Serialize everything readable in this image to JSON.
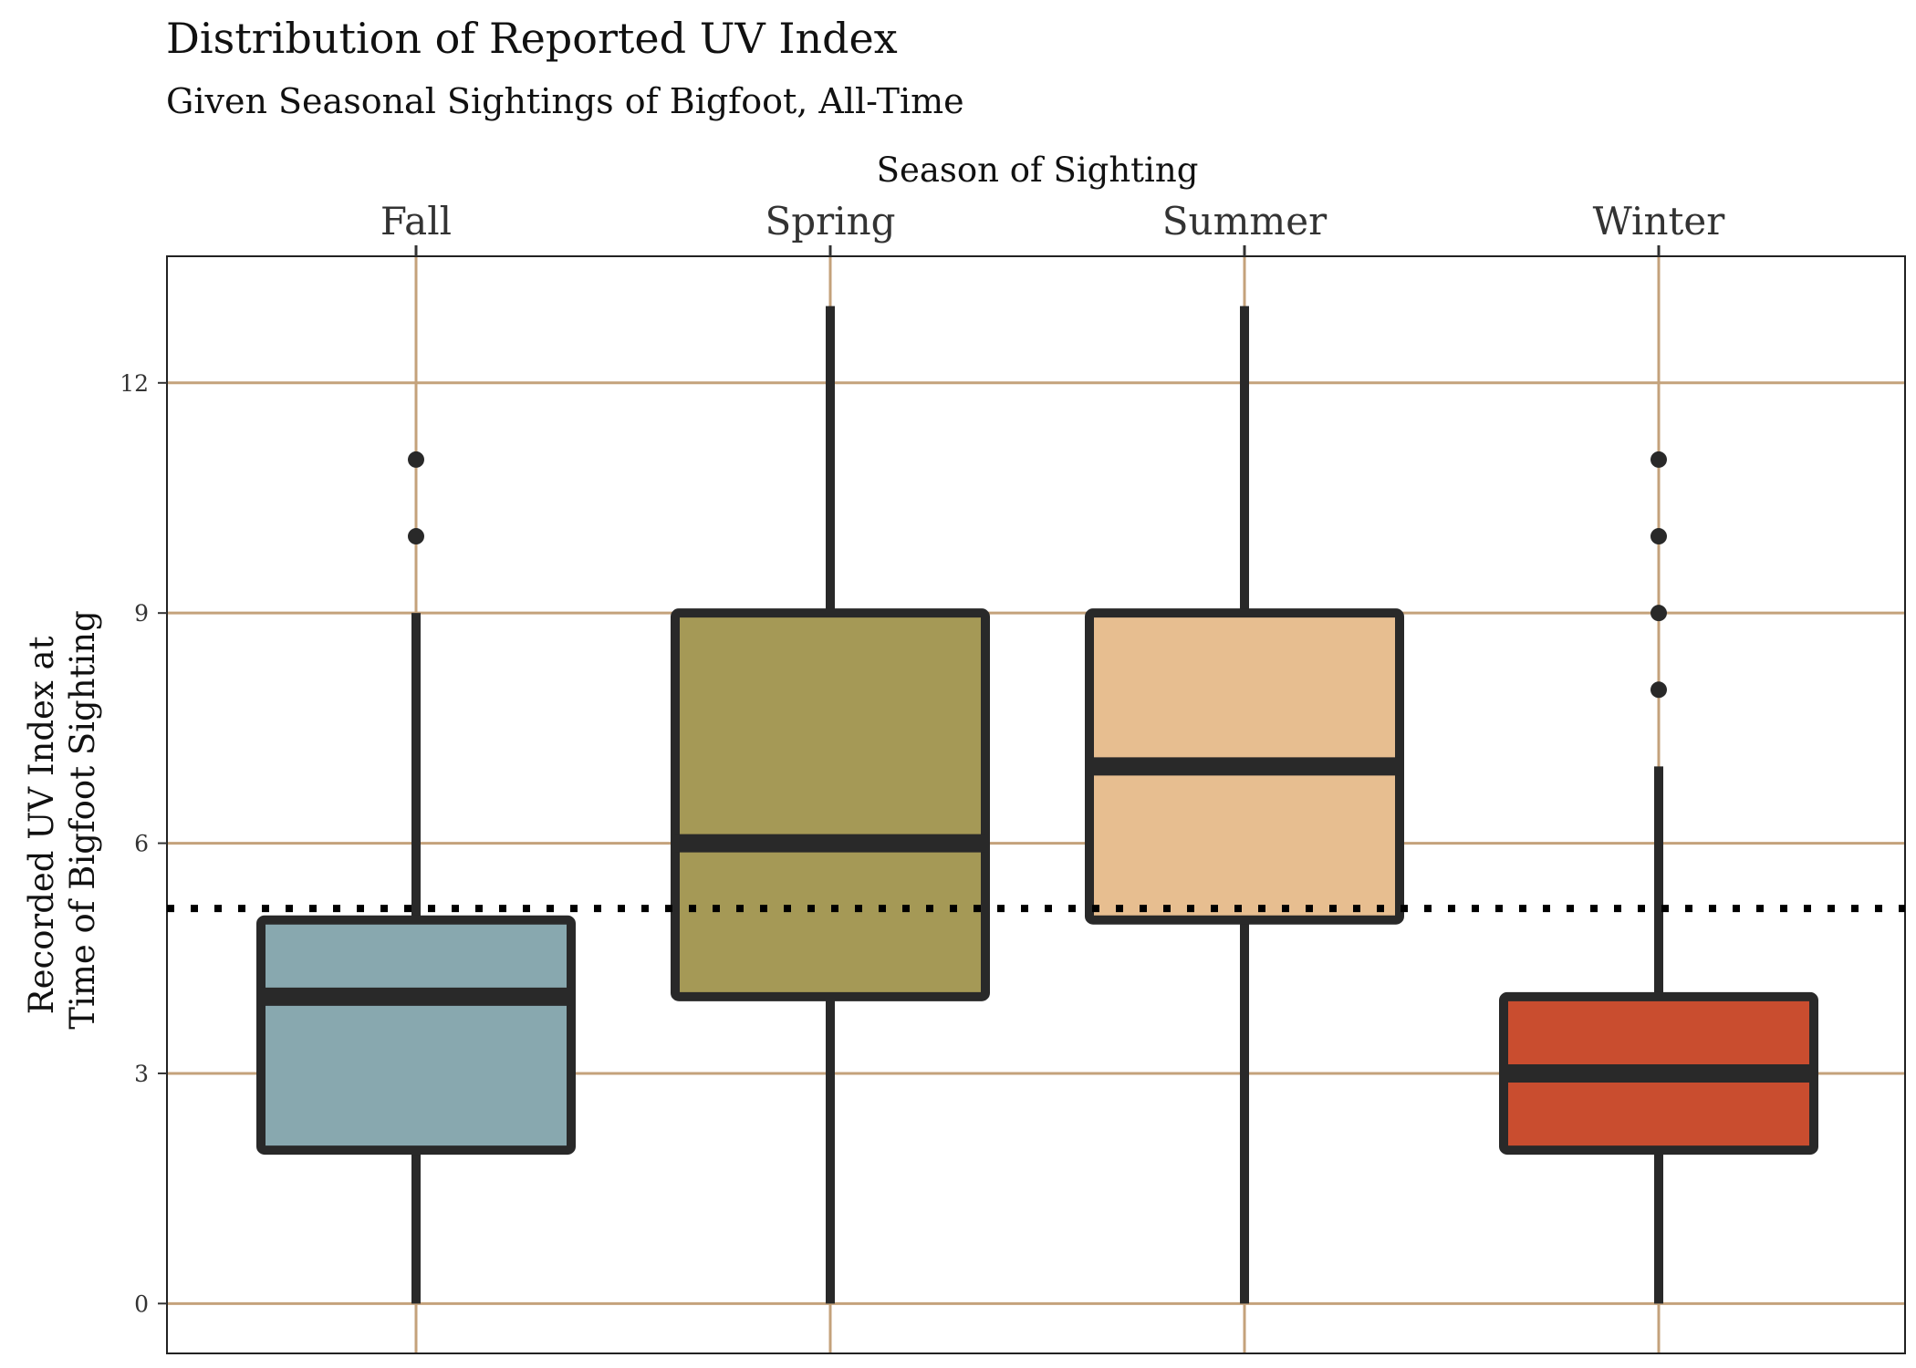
{
  "chart_data": {
    "type": "box",
    "title": "Distribution of Reported UV Index",
    "subtitle": "Given Seasonal Sightings of Bigfoot, All-Time",
    "xlabel": "Season of Sighting",
    "ylabel_lines": [
      "Recorded UV Index at",
      "Time of Bigfoot Sighting"
    ],
    "x_axis_position": "top",
    "categories": [
      "Fall",
      "Spring",
      "Summer",
      "Winter"
    ],
    "ylim": [
      -0.65,
      13.65
    ],
    "y_ticks": [
      0,
      3,
      6,
      9,
      12
    ],
    "grid": true,
    "reference_line": {
      "style": "dotted",
      "value": 5.15
    },
    "boxes": [
      {
        "category": "Fall",
        "min": 0,
        "q1": 2,
        "median": 4,
        "q3": 5,
        "max": 9,
        "outliers": [
          10,
          11
        ],
        "color": "#88A8AF"
      },
      {
        "category": "Spring",
        "min": 0,
        "q1": 4,
        "median": 6,
        "q3": 9,
        "max": 13,
        "outliers": [],
        "color": "#A59956"
      },
      {
        "category": "Summer",
        "min": 0,
        "q1": 5,
        "median": 7,
        "q3": 9,
        "max": 13,
        "outliers": [],
        "color": "#E7BE90"
      },
      {
        "category": "Winter",
        "min": 0,
        "q1": 2,
        "median": 3,
        "q3": 4,
        "max": 7,
        "outliers": [
          8,
          9,
          10,
          11
        ],
        "color": "#C94D2F"
      }
    ],
    "colors": {
      "grid": "#C4A27B",
      "stroke": "#292929",
      "panel_border": "#222222",
      "reference_line": "#000000"
    }
  }
}
